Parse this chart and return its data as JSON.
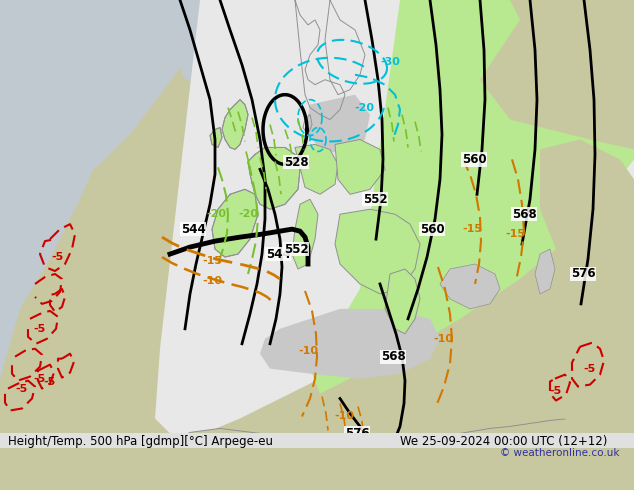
{
  "title_left": "Height/Temp. 500 hPa [gdmp][°C] Arpege-eu",
  "title_right": "We 25-09-2024 00:00 UTC (12+12)",
  "copyright": "© weatheronline.co.uk",
  "land_color": "#c8c8a0",
  "sea_color": "#c0c8d0",
  "white_region_color": "#e8e8e8",
  "green_region_color": "#b8e890",
  "gray_region_color": "#c8c8c8",
  "height_contour_color": "#000000",
  "temp_cyan_color": "#00c0d8",
  "temp_green_color": "#78c030",
  "temp_orange_color": "#d07800",
  "temp_red_color": "#cc0000",
  "figsize": [
    6.34,
    4.9
  ],
  "dpi": 100
}
